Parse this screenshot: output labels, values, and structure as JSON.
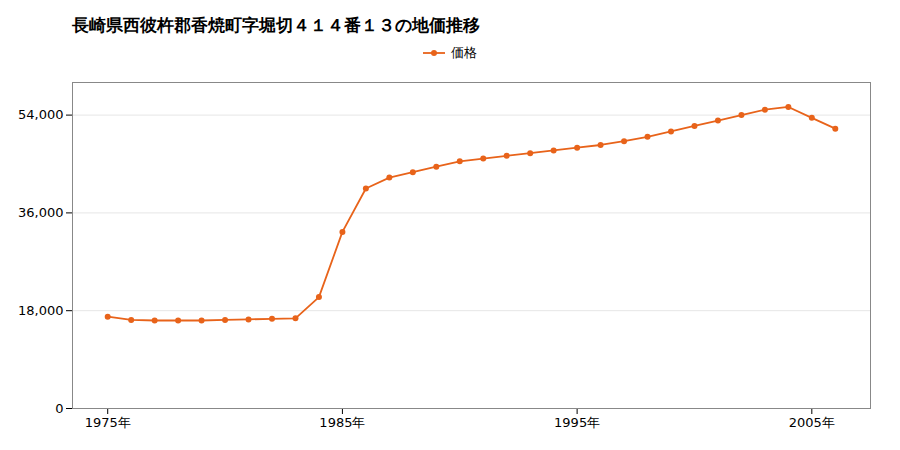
{
  "chart_data": {
    "type": "line",
    "title": "長崎県西彼杵郡香焼町字堀切４１４番１３の地価推移",
    "x": [
      1975,
      1976,
      1977,
      1978,
      1979,
      1980,
      1981,
      1982,
      1983,
      1984,
      1985,
      1986,
      1987,
      1988,
      1989,
      1990,
      1991,
      1992,
      1993,
      1994,
      1995,
      1996,
      1997,
      1998,
      1999,
      2000,
      2001,
      2002,
      2003,
      2004,
      2005,
      2006
    ],
    "series": [
      {
        "name": "価格",
        "color": "#e8631a",
        "marker": "circle",
        "values": [
          16900,
          16300,
          16200,
          16200,
          16200,
          16300,
          16400,
          16500,
          16600,
          20500,
          32500,
          40500,
          42500,
          43500,
          44500,
          45500,
          46000,
          46500,
          47000,
          47500,
          48000,
          48500,
          49200,
          50000,
          51000,
          52000,
          53000,
          54000,
          55000,
          55500,
          53500,
          51500
        ]
      }
    ],
    "xlim": [
      1973.5,
      2007.5
    ],
    "xticks": [
      {
        "value": 1975,
        "label": "1975年"
      },
      {
        "value": 1985,
        "label": "1985年"
      },
      {
        "value": 1995,
        "label": "1995年"
      },
      {
        "value": 2005,
        "label": "2005年"
      }
    ],
    "ylim": [
      0,
      60000
    ],
    "yticks": [
      0,
      {
        "value": 18000,
        "label": "18,000"
      },
      {
        "value": 36000,
        "label": "36,000"
      },
      {
        "value": 54000,
        "label": "54,000"
      }
    ],
    "grid": "y",
    "legend": "top"
  }
}
